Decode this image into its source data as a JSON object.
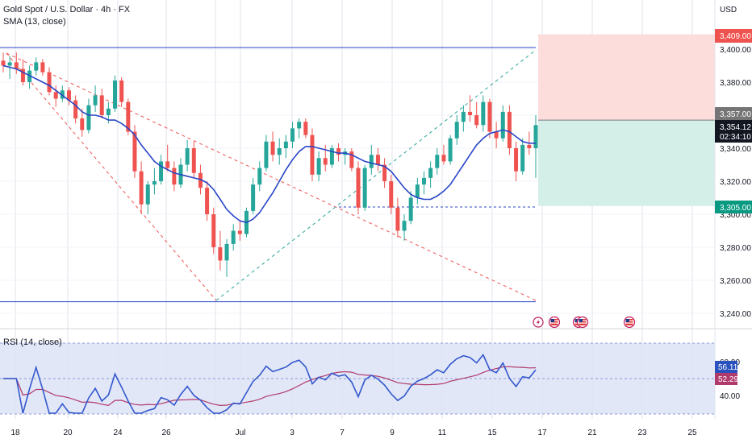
{
  "header": {
    "title": "Gold Spot / U.S. Dollar · 4h · FX",
    "indicator": "SMA (13, close)",
    "currency": "USD"
  },
  "rsi_panel": {
    "label": "RSI (14, close)"
  },
  "colors": {
    "up": "#26a69a",
    "down": "#ef5350",
    "sma": "#2945c6",
    "rsi": "#3358cc",
    "rsi_ma": "#b03a6b",
    "stop_zone": "#fddcdc",
    "target_zone": "#d4efe8"
  },
  "price_axis": {
    "labels": [
      "3,400.00",
      "3,380.00",
      "3,340.00",
      "3,320.00",
      "3,300.00",
      "3,280.00",
      "3,260.00",
      "3,240.00"
    ],
    "tags": {
      "stop": "3,409.00",
      "entry": "3,357.00",
      "last_price": "3,354.12",
      "countdown": "02:34:10",
      "target": "3,305.00"
    }
  },
  "rsi_axis": {
    "labels": [
      "60.00",
      "40.00"
    ],
    "tags": {
      "rsi": "56.11",
      "rsi_ma": "52.29"
    }
  },
  "time_axis": {
    "labels": [
      "18",
      "20",
      "24",
      "26",
      "Jul",
      "3",
      "7",
      "9",
      "11",
      "15",
      "17",
      "21",
      "23",
      "25"
    ]
  },
  "event_icons": [
    "lightning-icon",
    "us-flag-icon",
    "us-flag-icon",
    "us-flag-icon",
    "us-flag-icon"
  ],
  "chart_data": {
    "type": "candlestick",
    "symbol": "Gold Spot / U.S. Dollar",
    "timeframe": "4h",
    "ylim": [
      3230,
      3420
    ],
    "candles": [
      [
        3393,
        3398,
        3386,
        3390
      ],
      [
        3390,
        3396,
        3382,
        3392
      ],
      [
        3392,
        3398,
        3385,
        3388
      ],
      [
        3388,
        3394,
        3378,
        3380
      ],
      [
        3380,
        3390,
        3376,
        3387
      ],
      [
        3387,
        3395,
        3384,
        3392
      ],
      [
        3392,
        3394,
        3384,
        3386
      ],
      [
        3386,
        3389,
        3372,
        3374
      ],
      [
        3374,
        3378,
        3365,
        3370
      ],
      [
        3370,
        3378,
        3368,
        3375
      ],
      [
        3375,
        3377,
        3366,
        3369
      ],
      [
        3369,
        3372,
        3355,
        3358
      ],
      [
        3358,
        3364,
        3347,
        3351
      ],
      [
        3351,
        3370,
        3349,
        3366
      ],
      [
        3366,
        3378,
        3362,
        3372
      ],
      [
        3372,
        3376,
        3358,
        3360
      ],
      [
        3360,
        3368,
        3355,
        3364
      ],
      [
        3364,
        3384,
        3362,
        3381
      ],
      [
        3381,
        3383,
        3365,
        3368
      ],
      [
        3368,
        3370,
        3348,
        3350
      ],
      [
        3350,
        3354,
        3322,
        3326
      ],
      [
        3326,
        3332,
        3300,
        3306
      ],
      [
        3306,
        3320,
        3300,
        3318
      ],
      [
        3318,
        3328,
        3312,
        3320
      ],
      [
        3320,
        3336,
        3318,
        3332
      ],
      [
        3332,
        3342,
        3326,
        3328
      ],
      [
        3328,
        3332,
        3314,
        3318
      ],
      [
        3318,
        3334,
        3316,
        3330
      ],
      [
        3330,
        3345,
        3326,
        3340
      ],
      [
        3340,
        3344,
        3322,
        3325
      ],
      [
        3325,
        3330,
        3312,
        3316
      ],
      [
        3316,
        3320,
        3296,
        3300
      ],
      [
        3300,
        3304,
        3276,
        3280
      ],
      [
        3280,
        3290,
        3266,
        3272
      ],
      [
        3272,
        3285,
        3262,
        3282
      ],
      [
        3282,
        3294,
        3278,
        3290
      ],
      [
        3290,
        3296,
        3284,
        3288
      ],
      [
        3288,
        3304,
        3286,
        3302
      ],
      [
        3302,
        3322,
        3300,
        3318
      ],
      [
        3318,
        3332,
        3314,
        3328
      ],
      [
        3328,
        3348,
        3326,
        3344
      ],
      [
        3344,
        3350,
        3332,
        3336
      ],
      [
        3336,
        3346,
        3330,
        3340
      ],
      [
        3340,
        3348,
        3334,
        3344
      ],
      [
        3344,
        3356,
        3340,
        3352
      ],
      [
        3352,
        3358,
        3346,
        3356
      ],
      [
        3356,
        3358,
        3346,
        3348
      ],
      [
        3348,
        3352,
        3320,
        3324
      ],
      [
        3324,
        3338,
        3320,
        3334
      ],
      [
        3334,
        3342,
        3326,
        3330
      ],
      [
        3330,
        3342,
        3328,
        3340
      ],
      [
        3340,
        3343,
        3332,
        3336
      ],
      [
        3336,
        3340,
        3330,
        3338
      ],
      [
        3338,
        3340,
        3326,
        3328
      ],
      [
        3328,
        3332,
        3300,
        3304
      ],
      [
        3304,
        3330,
        3302,
        3328
      ],
      [
        3328,
        3342,
        3324,
        3336
      ],
      [
        3336,
        3340,
        3326,
        3330
      ],
      [
        3330,
        3334,
        3316,
        3320
      ],
      [
        3320,
        3324,
        3300,
        3304
      ],
      [
        3304,
        3310,
        3286,
        3290
      ],
      [
        3290,
        3300,
        3284,
        3296
      ],
      [
        3296,
        3314,
        3294,
        3310
      ],
      [
        3310,
        3322,
        3306,
        3318
      ],
      [
        3318,
        3326,
        3312,
        3322
      ],
      [
        3322,
        3332,
        3316,
        3328
      ],
      [
        3328,
        3340,
        3324,
        3336
      ],
      [
        3336,
        3342,
        3330,
        3332
      ],
      [
        3332,
        3348,
        3330,
        3346
      ],
      [
        3346,
        3360,
        3342,
        3356
      ],
      [
        3356,
        3366,
        3350,
        3362
      ],
      [
        3362,
        3372,
        3356,
        3360
      ],
      [
        3360,
        3368,
        3352,
        3354
      ],
      [
        3354,
        3372,
        3350,
        3368
      ],
      [
        3368,
        3370,
        3346,
        3350
      ],
      [
        3350,
        3356,
        3340,
        3346
      ],
      [
        3346,
        3366,
        3344,
        3362
      ],
      [
        3362,
        3366,
        3336,
        3340
      ],
      [
        3340,
        3344,
        3320,
        3326
      ],
      [
        3326,
        3346,
        3324,
        3342
      ],
      [
        3342,
        3350,
        3336,
        3340
      ],
      [
        3340,
        3360,
        3322,
        3354
      ]
    ],
    "sma": {
      "name": "SMA (13, close)",
      "values": [
        3390,
        3389,
        3388,
        3386,
        3384,
        3382,
        3380,
        3378,
        3375,
        3372,
        3369,
        3366,
        3362,
        3360,
        3360,
        3359,
        3357,
        3357,
        3355,
        3352,
        3348,
        3342,
        3337,
        3332,
        3329,
        3327,
        3325,
        3324,
        3323,
        3322,
        3321,
        3319,
        3315,
        3309,
        3303,
        3299,
        3296,
        3295,
        3297,
        3301,
        3307,
        3313,
        3320,
        3327,
        3333,
        3338,
        3341,
        3341,
        3340,
        3339,
        3338,
        3337,
        3337,
        3336,
        3334,
        3332,
        3331,
        3330,
        3329,
        3326,
        3321,
        3316,
        3312,
        3310,
        3309,
        3309,
        3311,
        3314,
        3318,
        3324,
        3330,
        3336,
        3342,
        3346,
        3349,
        3350,
        3351,
        3350,
        3347,
        3344,
        3343,
        3343
      ]
    },
    "rsi": {
      "name": "RSI (14, close)",
      "last": 56.11,
      "ma_last": 52.29,
      "levels": [
        70,
        30
      ]
    },
    "lines": {
      "stop_level": 3409,
      "entry_level": 3357,
      "target_level": 3305,
      "upper_horizontal": 3401,
      "lower_horizontal": 3247
    }
  }
}
